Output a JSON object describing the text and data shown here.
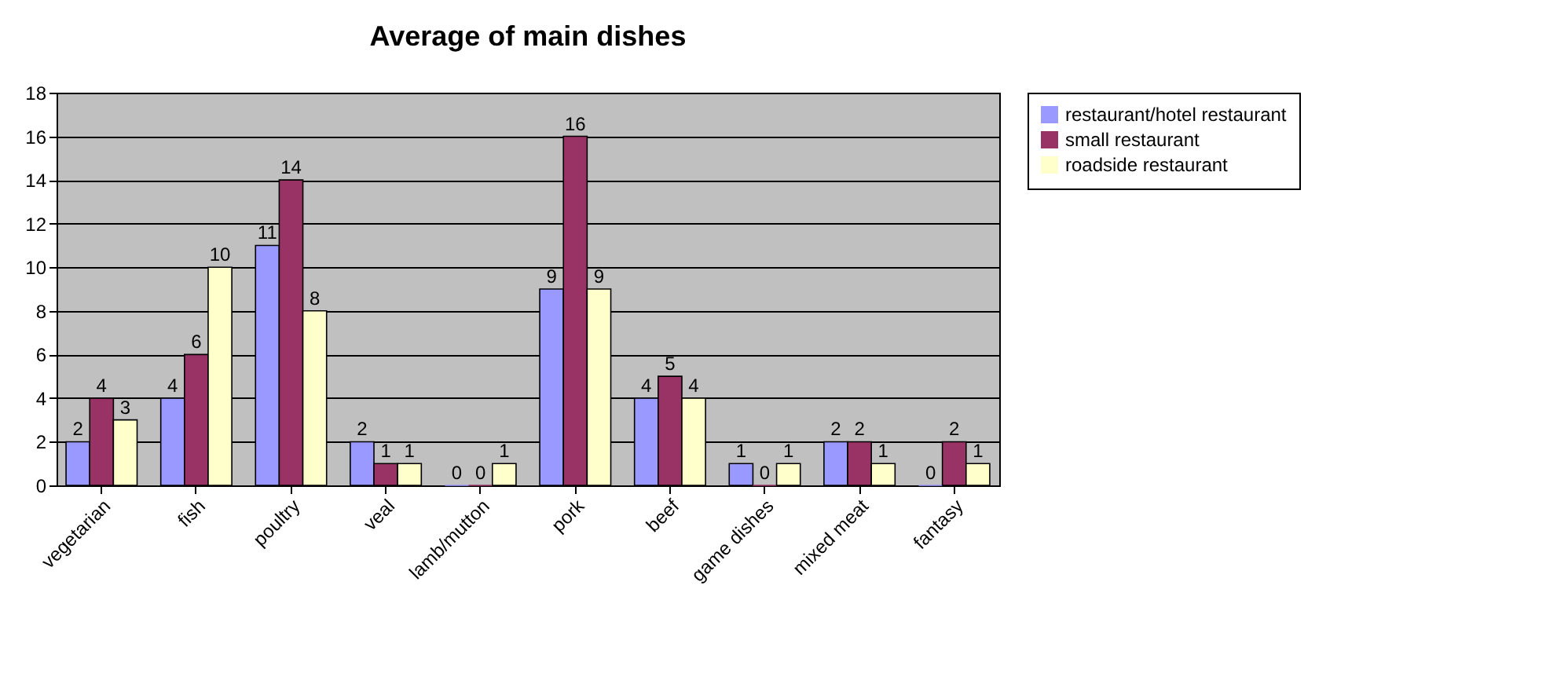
{
  "chart_data": {
    "type": "bar",
    "title": "Average of main dishes",
    "categories": [
      "vegetarian",
      "fish",
      "poultry",
      "veal",
      "lamb/mutton",
      "pork",
      "beef",
      "game dishes",
      "mixed meat",
      "fantasy"
    ],
    "series": [
      {
        "name": "restaurant/hotel restaurant",
        "color": "#9999ff",
        "values": [
          2,
          4,
          11,
          2,
          0,
          9,
          4,
          1,
          2,
          0
        ]
      },
      {
        "name": "small restaurant",
        "color": "#993366",
        "values": [
          4,
          6,
          14,
          1,
          0,
          16,
          5,
          0,
          2,
          2
        ]
      },
      {
        "name": "roadside restaurant",
        "color": "#ffffcc",
        "values": [
          3,
          10,
          8,
          1,
          1,
          9,
          4,
          1,
          1,
          1
        ]
      }
    ],
    "ylim": [
      0,
      18
    ],
    "yticks": [
      0,
      2,
      4,
      6,
      8,
      10,
      12,
      14,
      16,
      18
    ],
    "grid": "y",
    "legend": "right",
    "data_labels": true
  }
}
